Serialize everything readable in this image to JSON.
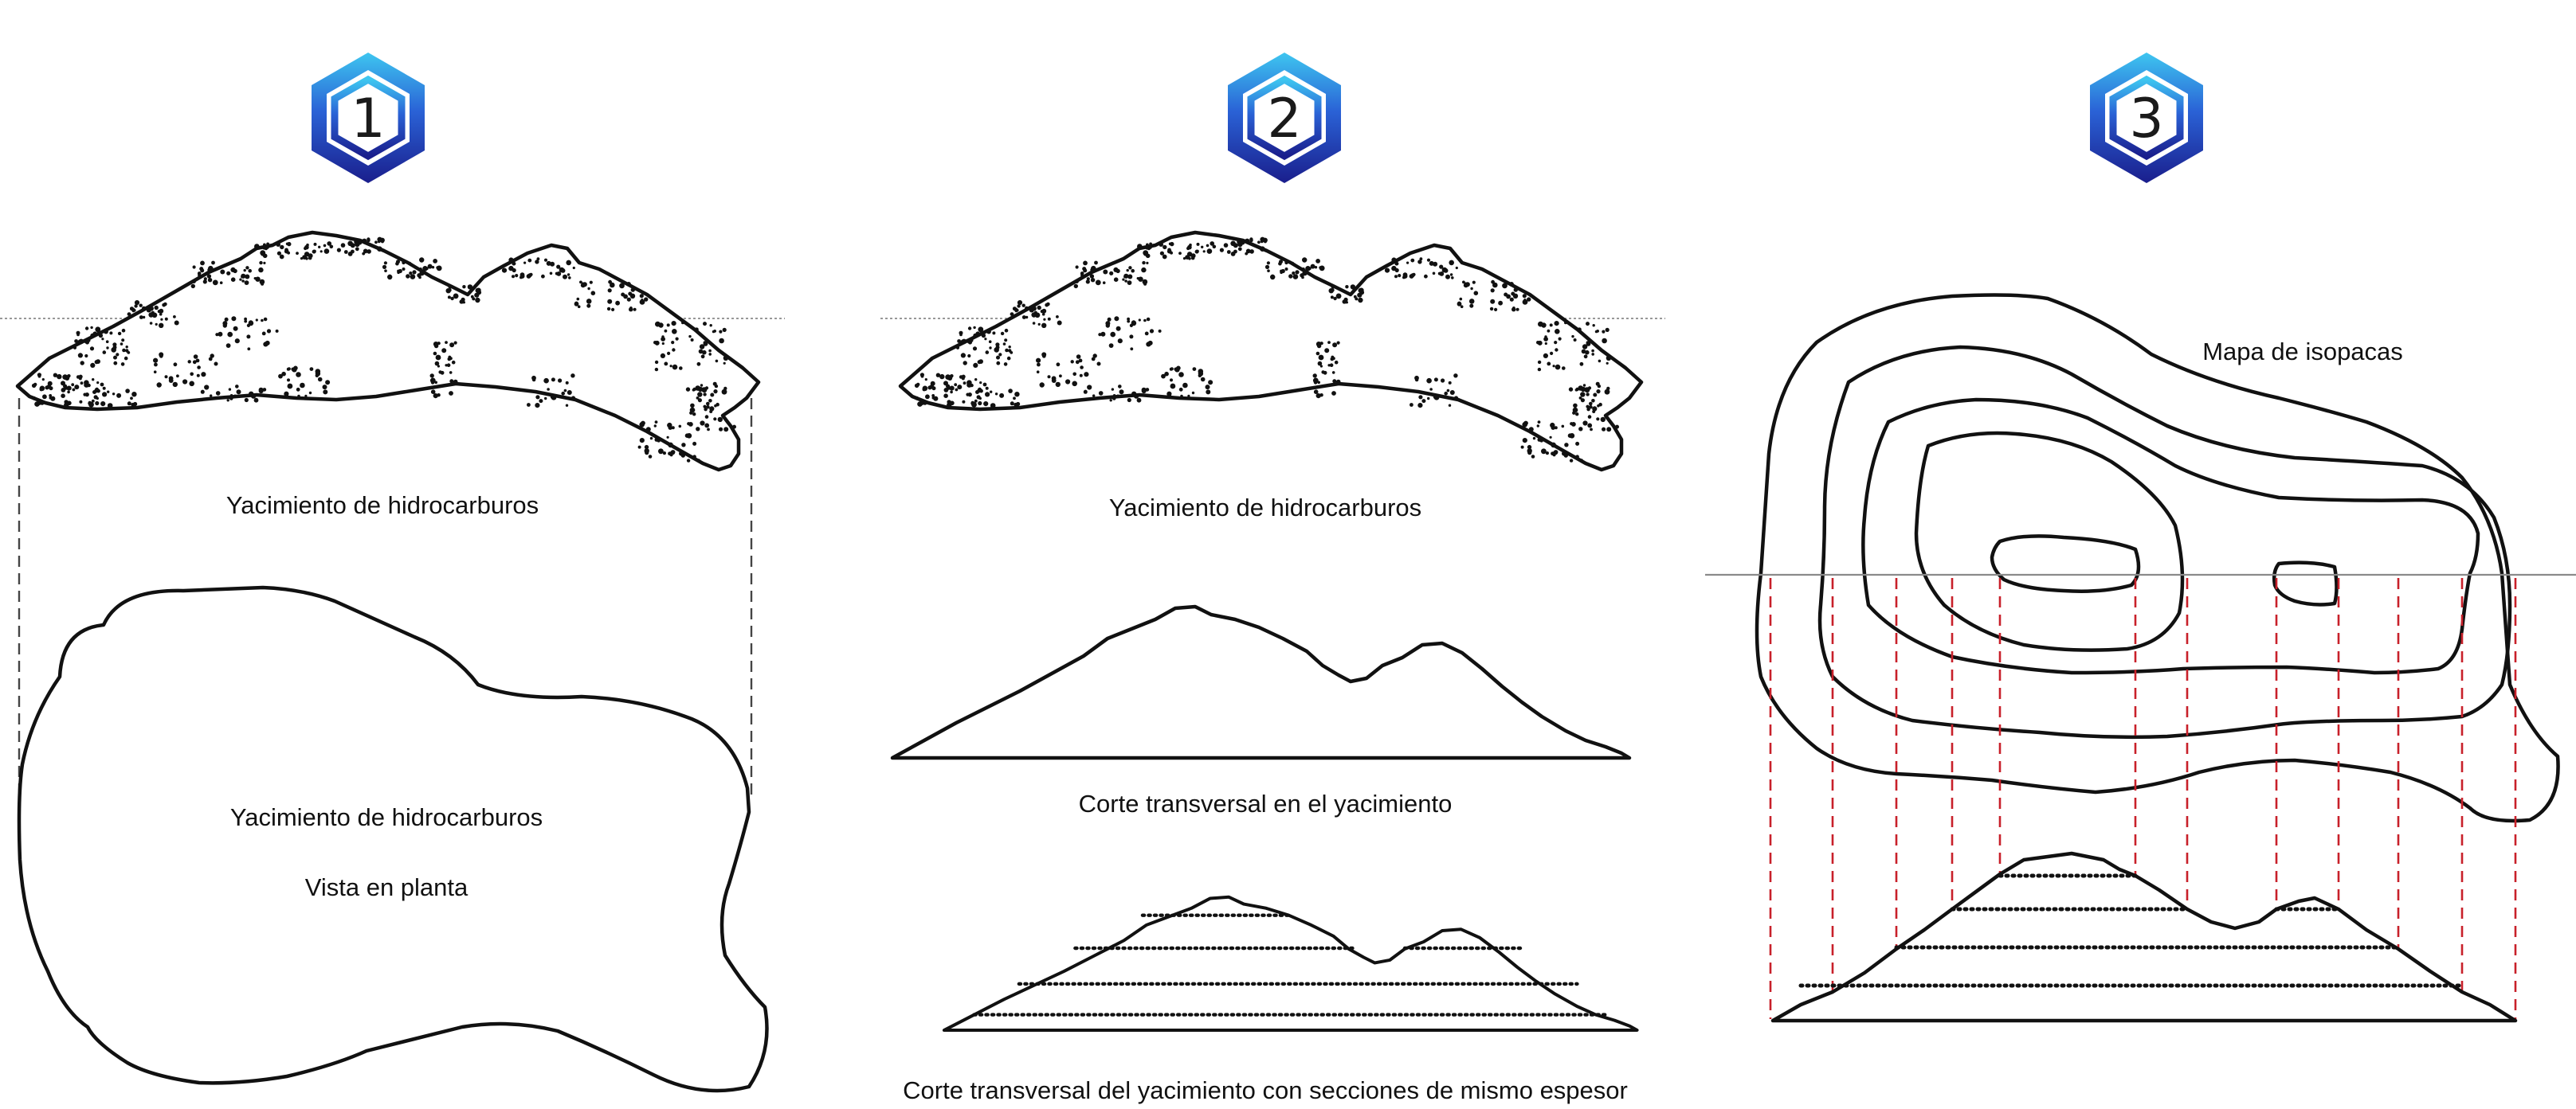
{
  "panels": [
    {
      "number": "1",
      "reservoir_label": "Yacimiento de hidrocarburos",
      "plan_label_line1": "Yacimiento de hidrocarburos",
      "plan_label_line2": "Vista en planta"
    },
    {
      "number": "2",
      "reservoir_label": "Yacimiento de hidrocarburos",
      "section_label": "Corte transversal en el yacimiento",
      "sections_label": "Corte transversal del yacimiento con secciones de mismo espesor"
    },
    {
      "number": "3",
      "map_label": "Mapa de isopacas"
    }
  ],
  "colors": {
    "badge_top": "#3ec6f0",
    "badge_bottom": "#1a1e8c",
    "projection_red": "#c8202a",
    "outline": "#111111"
  }
}
